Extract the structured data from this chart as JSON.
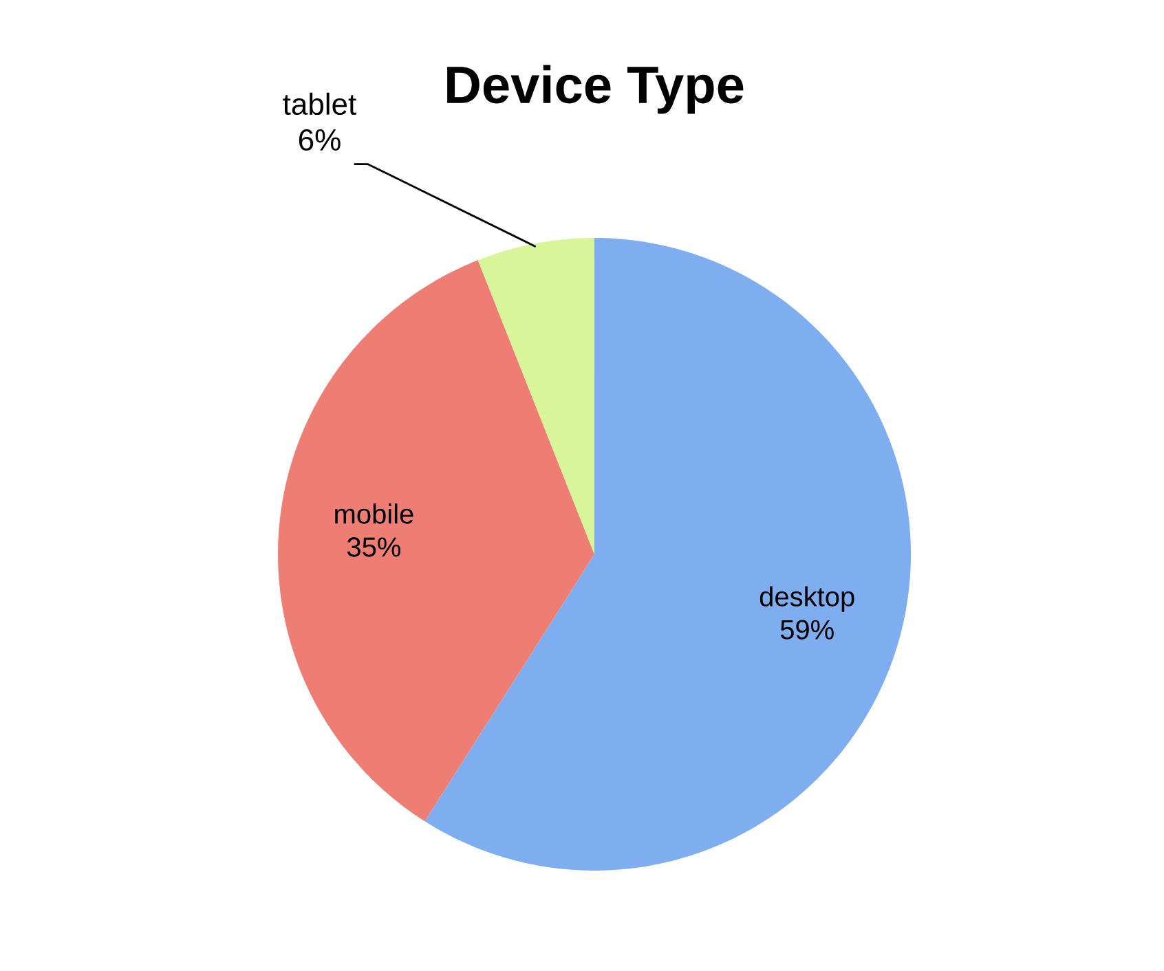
{
  "chart_data": {
    "type": "pie",
    "title": "Device Type",
    "categories": [
      "desktop",
      "mobile",
      "tablet"
    ],
    "values": [
      59,
      35,
      6
    ],
    "value_labels": [
      "59%",
      "35%",
      "6%"
    ],
    "colors": [
      "#7eaef0",
      "#ee7e74",
      "#d8f59a"
    ]
  }
}
